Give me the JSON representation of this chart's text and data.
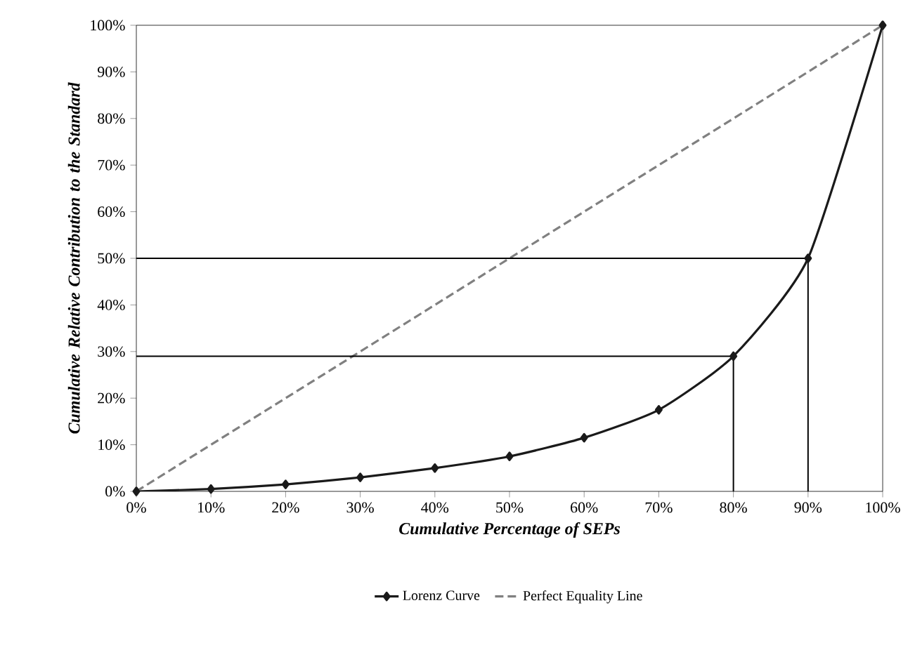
{
  "chart_data": {
    "type": "line",
    "xlabel": "Cumulative Percentage of SEPs",
    "ylabel": "Cumulative Relative Contribution to the Standard",
    "xlim": [
      0,
      100
    ],
    "ylim": [
      0,
      100
    ],
    "xticks": [
      {
        "value": 0,
        "label": "0%"
      },
      {
        "value": 10,
        "label": "10%"
      },
      {
        "value": 20,
        "label": "20%"
      },
      {
        "value": 30,
        "label": "30%"
      },
      {
        "value": 40,
        "label": "40%"
      },
      {
        "value": 50,
        "label": "50%"
      },
      {
        "value": 60,
        "label": "60%"
      },
      {
        "value": 70,
        "label": "70%"
      },
      {
        "value": 80,
        "label": "80%"
      },
      {
        "value": 90,
        "label": "90%"
      },
      {
        "value": 100,
        "label": "100%"
      }
    ],
    "yticks": [
      {
        "value": 0,
        "label": "0%"
      },
      {
        "value": 10,
        "label": "10%"
      },
      {
        "value": 20,
        "label": "20%"
      },
      {
        "value": 30,
        "label": "30%"
      },
      {
        "value": 40,
        "label": "40%"
      },
      {
        "value": 50,
        "label": "50%"
      },
      {
        "value": 60,
        "label": "60%"
      },
      {
        "value": 70,
        "label": "70%"
      },
      {
        "value": 80,
        "label": "80%"
      },
      {
        "value": 90,
        "label": "90%"
      },
      {
        "value": 100,
        "label": "100%"
      }
    ],
    "grid": false,
    "legend": "bottom",
    "series": [
      {
        "name": "Lorenz Curve",
        "color": "#1a1a1a",
        "marker": "diamond",
        "line_style": "solid",
        "x": [
          0,
          10,
          20,
          30,
          40,
          50,
          60,
          70,
          80,
          90,
          100
        ],
        "values": [
          0,
          0.5,
          1.5,
          3,
          5,
          7.5,
          11.5,
          17.5,
          29,
          50,
          100
        ]
      },
      {
        "name": "Perfect Equality Line",
        "color": "#808080",
        "marker": "none",
        "line_style": "dashed",
        "x": [
          0,
          100
        ],
        "values": [
          0,
          100
        ]
      },
      {
        "color": "#000000",
        "marker": "none",
        "line_style": "solid",
        "x": [
          0,
          90
        ],
        "values": [
          50,
          50
        ]
      },
      {
        "color": "#000000",
        "marker": "none",
        "line_style": "solid",
        "x": [
          0,
          80
        ],
        "values": [
          29,
          29
        ]
      },
      {
        "color": "#000000",
        "marker": "none",
        "line_style": "solid",
        "x": [
          80,
          80
        ],
        "values": [
          0,
          29
        ]
      },
      {
        "color": "#000000",
        "marker": "none",
        "line_style": "solid",
        "x": [
          90,
          90
        ],
        "values": [
          0,
          50
        ]
      }
    ]
  }
}
